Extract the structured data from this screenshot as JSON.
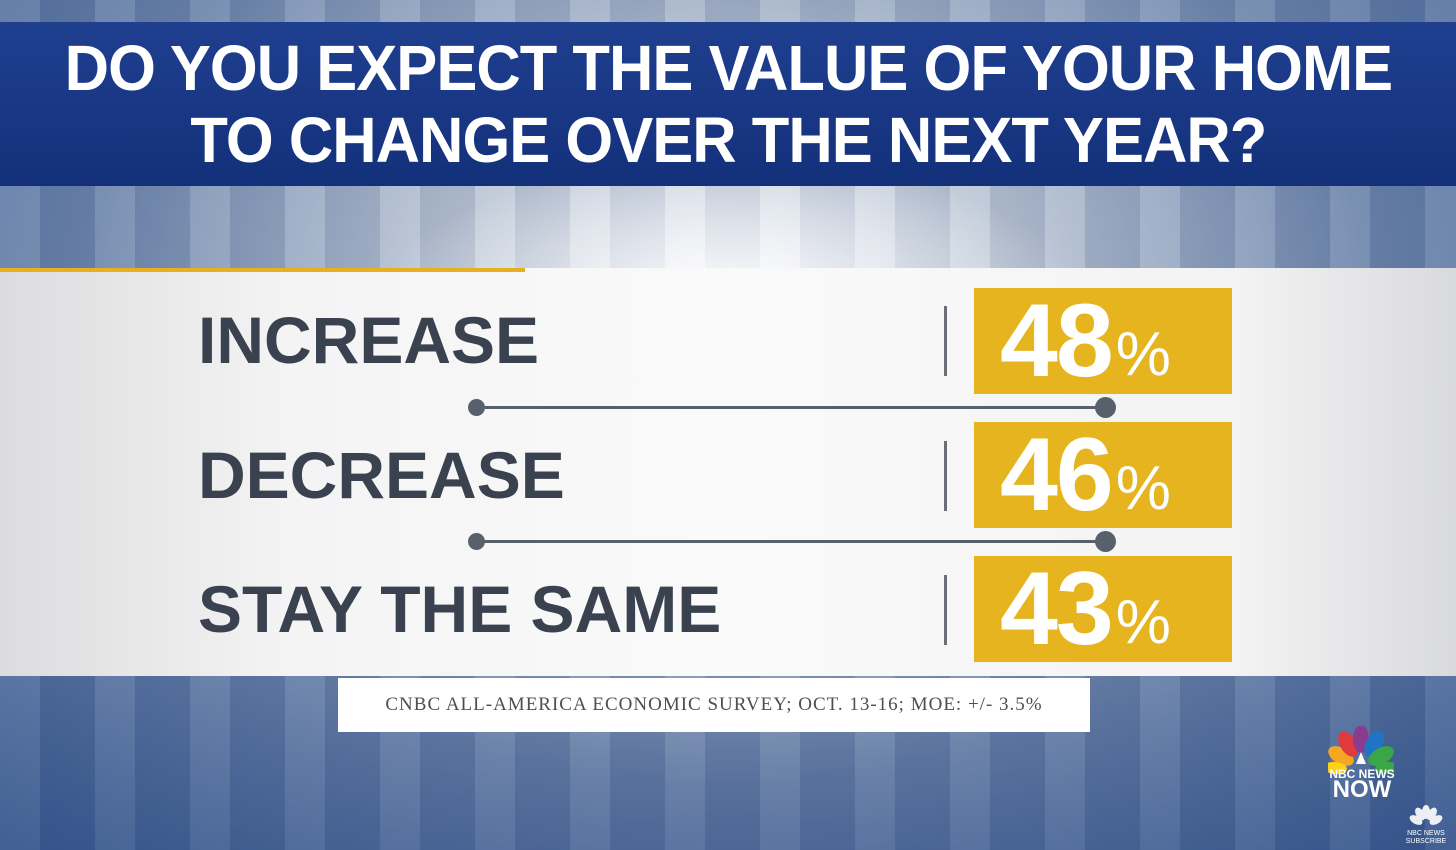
{
  "title": {
    "line1": "DO YOU EXPECT THE VALUE OF YOUR HOME",
    "line2": "TO CHANGE OVER THE NEXT YEAR?"
  },
  "chart_data": {
    "type": "table",
    "categories": [
      "INCREASE",
      "DECREASE",
      "STAY THE SAME"
    ],
    "values": [
      48,
      46,
      43
    ],
    "value_suffix": "%",
    "title": "DO YOU EXPECT THE VALUE OF YOUR HOME TO CHANGE OVER THE NEXT YEAR?"
  },
  "rows": [
    {
      "label": "INCREASE",
      "value": "48",
      "suffix": "%"
    },
    {
      "label": "DECREASE",
      "value": "46",
      "suffix": "%"
    },
    {
      "label": "STAY THE SAME",
      "value": "43",
      "suffix": "%"
    }
  ],
  "source": "CNBC ALL-AMERICA ECONOMIC SURVEY; OCT. 13-16; MOE: +/- 3.5%",
  "branding": {
    "network_line1": "NBC NEWS",
    "network_line2": "NOW",
    "subscribe_line1": "NBC NEWS",
    "subscribe_line2": "SUBSCRIBE",
    "logo_icon": "nbc-peacock-icon"
  },
  "colors": {
    "title_bar": "#1f3f8f",
    "value_box": "#e6b41e",
    "label_text": "#3a4250",
    "accent_line": "#e8b020"
  }
}
